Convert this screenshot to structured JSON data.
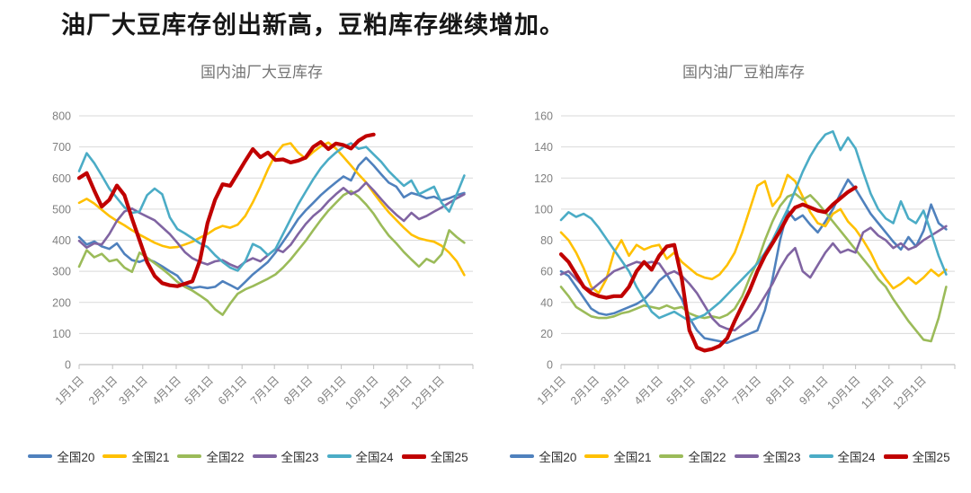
{
  "page": {
    "heading": "油厂大豆库存创出新高，豆粕库存继续增加。"
  },
  "chart_data": [
    {
      "type": "line",
      "title": "国内油厂大豆库存",
      "ylim": [
        0,
        800
      ],
      "y_step": 100,
      "grid": true,
      "legend_position": "bottom",
      "x_tick_labels": [
        "1月1日",
        "2月1日",
        "3月1日",
        "4月1日",
        "5月1日",
        "6月1日",
        "7月1日",
        "8月1日",
        "9月1日",
        "10月1日",
        "11月1日",
        "12月1日"
      ],
      "x_tick_days": [
        0,
        31,
        59,
        90,
        120,
        151,
        181,
        212,
        243,
        273,
        304,
        334
      ],
      "x_note": "weekly points, day-of-year spacing",
      "series": [
        {
          "name": "全国20",
          "color": "#4F81BD",
          "width": 2.6,
          "values": [
            410,
            386,
            396,
            380,
            372,
            390,
            356,
            336,
            330,
            340,
            330,
            316,
            300,
            286,
            256,
            246,
            250,
            246,
            250,
            268,
            256,
            243,
            266,
            290,
            310,
            330,
            360,
            395,
            430,
            468,
            496,
            520,
            545,
            566,
            586,
            605,
            592,
            640,
            665,
            640,
            612,
            585,
            572,
            538,
            552,
            545,
            535,
            540,
            528,
            535,
            545,
            552
          ]
        },
        {
          "name": "全国21",
          "color": "#FFC000",
          "width": 2.6,
          "values": [
            520,
            533,
            518,
            498,
            478,
            462,
            448,
            432,
            418,
            405,
            392,
            382,
            376,
            378,
            386,
            395,
            408,
            420,
            436,
            446,
            440,
            450,
            478,
            522,
            572,
            628,
            676,
            706,
            712,
            682,
            662,
            684,
            702,
            714,
            695,
            668,
            640,
            612,
            586,
            552,
            520,
            490,
            465,
            440,
            418,
            406,
            400,
            395,
            382,
            360,
            332,
            288
          ]
        },
        {
          "name": "全国22",
          "color": "#9BBB59",
          "width": 2.6,
          "values": [
            315,
            368,
            345,
            356,
            332,
            338,
            312,
            298,
            360,
            344,
            326,
            308,
            288,
            266,
            250,
            238,
            222,
            205,
            178,
            160,
            196,
            228,
            242,
            252,
            264,
            276,
            290,
            312,
            338,
            368,
            398,
            432,
            465,
            495,
            520,
            545,
            558,
            540,
            515,
            485,
            448,
            415,
            390,
            362,
            338,
            315,
            340,
            328,
            355,
            432,
            410,
            392
          ]
        },
        {
          "name": "全国23",
          "color": "#8064A2",
          "width": 2.6,
          "values": [
            398,
            376,
            390,
            386,
            420,
            462,
            492,
            502,
            488,
            476,
            464,
            442,
            420,
            392,
            362,
            342,
            330,
            322,
            332,
            336,
            322,
            312,
            330,
            342,
            332,
            352,
            372,
            362,
            385,
            420,
            452,
            478,
            498,
            525,
            548,
            568,
            548,
            560,
            585,
            560,
            532,
            505,
            482,
            462,
            488,
            468,
            478,
            492,
            505,
            520,
            535,
            548
          ]
        },
        {
          "name": "全国24",
          "color": "#4BACC6",
          "width": 2.6,
          "values": [
            622,
            680,
            648,
            608,
            566,
            536,
            506,
            488,
            492,
            545,
            566,
            548,
            474,
            436,
            422,
            406,
            390,
            378,
            352,
            330,
            312,
            302,
            332,
            388,
            376,
            352,
            372,
            420,
            468,
            515,
            556,
            596,
            632,
            660,
            682,
            700,
            712,
            694,
            700,
            676,
            652,
            622,
            598,
            575,
            592,
            548,
            560,
            572,
            520,
            492,
            548,
            608
          ]
        },
        {
          "name": "全国25",
          "color": "#C00000",
          "width": 4.2,
          "values": [
            600,
            616,
            560,
            508,
            530,
            576,
            545,
            470,
            400,
            330,
            285,
            262,
            255,
            252,
            260,
            268,
            335,
            455,
            530,
            580,
            575,
            615,
            655,
            693,
            667,
            682,
            658,
            660,
            650,
            656,
            666,
            700,
            716,
            693,
            711,
            706,
            695,
            720,
            735,
            740
          ]
        }
      ]
    },
    {
      "type": "line",
      "title": "国内油厂豆粕库存",
      "ylim": [
        0,
        160
      ],
      "y_step": 20,
      "grid": true,
      "legend_position": "bottom",
      "x_tick_labels": [
        "1月1日",
        "2月1日",
        "3月1日",
        "4月1日",
        "5月1日",
        "6月1日",
        "7月1日",
        "8月1日",
        "9月1日",
        "10月1日",
        "11月1日",
        "12月1日"
      ],
      "x_tick_days": [
        0,
        31,
        59,
        90,
        120,
        151,
        181,
        212,
        243,
        273,
        304,
        334
      ],
      "x_note": "weekly points, day-of-year spacing",
      "series": [
        {
          "name": "全国20",
          "color": "#4F81BD",
          "width": 2.6,
          "values": [
            60,
            57,
            50,
            43,
            36,
            33,
            32,
            33,
            35,
            37,
            39,
            42,
            47,
            54,
            58,
            50,
            42,
            30,
            22,
            17,
            16,
            15,
            14,
            16,
            18,
            20,
            22,
            35,
            55,
            80,
            99,
            93,
            96,
            90,
            85,
            92,
            100,
            110,
            119,
            113,
            105,
            97,
            91,
            85,
            79,
            74,
            82,
            76,
            86,
            103,
            91,
            87
          ]
        },
        {
          "name": "全国21",
          "color": "#FFC000",
          "width": 2.6,
          "values": [
            85,
            80,
            72,
            62,
            50,
            46,
            55,
            72,
            80,
            70,
            77,
            74,
            76,
            77,
            68,
            72,
            66,
            62,
            58,
            56,
            55,
            58,
            64,
            72,
            85,
            100,
            115,
            118,
            102,
            108,
            122,
            118,
            108,
            98,
            91,
            89,
            97,
            100,
            92,
            87,
            80,
            72,
            62,
            55,
            49,
            52,
            56,
            52,
            56,
            61,
            57,
            61
          ]
        },
        {
          "name": "全国22",
          "color": "#9BBB59",
          "width": 2.6,
          "values": [
            50,
            44,
            37,
            34,
            31,
            30,
            30,
            31,
            33,
            34,
            36,
            38,
            37,
            36,
            38,
            36,
            37,
            33,
            31,
            30,
            31,
            30,
            32,
            36,
            44,
            56,
            66,
            80,
            92,
            102,
            108,
            110,
            106,
            109,
            104,
            98,
            92,
            86,
            80,
            74,
            68,
            62,
            55,
            50,
            42,
            35,
            28,
            22,
            16,
            15,
            30,
            50
          ]
        },
        {
          "name": "全国23",
          "color": "#8064A2",
          "width": 2.6,
          "values": [
            58,
            60,
            55,
            50,
            48,
            52,
            56,
            60,
            62,
            64,
            66,
            65,
            66,
            65,
            58,
            60,
            57,
            52,
            46,
            38,
            30,
            25,
            23,
            22,
            26,
            30,
            36,
            44,
            52,
            62,
            70,
            75,
            60,
            56,
            64,
            72,
            78,
            72,
            74,
            72,
            85,
            88,
            83,
            80,
            75,
            78,
            74,
            76,
            80,
            83,
            86,
            89
          ]
        },
        {
          "name": "全国24",
          "color": "#4BACC6",
          "width": 2.6,
          "values": [
            93,
            98,
            95,
            97,
            94,
            88,
            81,
            74,
            67,
            60,
            50,
            42,
            34,
            30,
            32,
            34,
            31,
            28,
            30,
            32,
            36,
            40,
            45,
            50,
            55,
            60,
            65,
            72,
            80,
            90,
            100,
            112,
            124,
            134,
            142,
            148,
            150,
            138,
            146,
            139,
            124,
            110,
            100,
            94,
            91,
            105,
            94,
            91,
            99,
            85,
            70,
            58
          ]
        },
        {
          "name": "全国25",
          "color": "#C00000",
          "width": 4.2,
          "values": [
            71,
            66,
            58,
            50,
            46,
            44,
            43,
            44,
            44,
            50,
            60,
            66,
            61,
            70,
            76,
            77,
            55,
            22,
            11,
            9,
            10,
            12,
            17,
            28,
            38,
            48,
            60,
            70,
            78,
            86,
            95,
            101,
            103,
            101,
            99,
            98,
            103,
            107,
            111,
            114
          ]
        }
      ]
    }
  ],
  "layout_colors": {
    "gridline": "#D9D9D9",
    "axis_line": "#BFBFBF",
    "axis_text": "#808080",
    "chart_title_text": "#757575"
  }
}
